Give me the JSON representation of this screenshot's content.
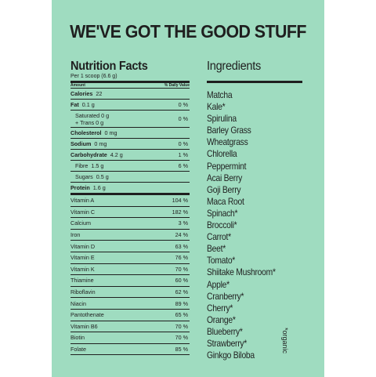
{
  "headline": "WE'VE GOT THE GOOD STUFF",
  "nutrition": {
    "title": "Nutrition Facts",
    "serving": "Per 1 scoop (6.6 g)",
    "col_amount": "Amount",
    "col_dv": "% Daily Value",
    "calories": {
      "label": "Calories",
      "value": "22"
    },
    "fat": {
      "label": "Fat",
      "value": "0.1 g",
      "dv": "0 %"
    },
    "sat": {
      "label": "Saturated",
      "value": "0 g",
      "label2": "+ Trans",
      "value2": "0 g",
      "dv": "0 %"
    },
    "cholesterol": {
      "label": "Cholesterol",
      "value": "0 mg"
    },
    "sodium": {
      "label": "Sodium",
      "value": "0 mg",
      "dv": "0 %"
    },
    "carbs": {
      "label": "Carbohydrate",
      "value": "4.2 g",
      "dv": "1 %"
    },
    "fibre": {
      "label": "Fibre",
      "value": "1.5 g",
      "dv": "6 %"
    },
    "sugars": {
      "label": "Sugars",
      "value": "0.5 g"
    },
    "protein": {
      "label": "Protein",
      "value": "1.6 g"
    },
    "vitamins": [
      {
        "name": "Vitamin A",
        "dv": "104 %"
      },
      {
        "name": "Vitamin C",
        "dv": "182 %"
      },
      {
        "name": "Calcium",
        "dv": "3 %"
      },
      {
        "name": "Iron",
        "dv": "24 %"
      },
      {
        "name": "Vitamin D",
        "dv": "63 %"
      },
      {
        "name": "Vitamin E",
        "dv": "76 %"
      },
      {
        "name": "Vitamin K",
        "dv": "70 %"
      },
      {
        "name": "Thiamine",
        "dv": "60 %"
      },
      {
        "name": "Riboflavin",
        "dv": "62 %"
      },
      {
        "name": "Niacin",
        "dv": "89 %"
      },
      {
        "name": "Pantothenate",
        "dv": "65 %"
      },
      {
        "name": "Vitamin B6",
        "dv": "70 %"
      },
      {
        "name": "Biotin",
        "dv": "70 %"
      },
      {
        "name": "Folate",
        "dv": "85 %"
      }
    ]
  },
  "ingredients": {
    "title": "Ingredients",
    "items": [
      "Matcha",
      "Kale*",
      "Spirulina",
      "Barley Grass",
      "Wheatgrass",
      "Chlorella",
      "Peppermint",
      "Acai Berry",
      "Goji Berry",
      "Maca Root",
      "Spinach*",
      "Broccoli*",
      "Carrot*",
      "Beet*",
      "Tomato*",
      "Shiitake Mushroom*",
      "Apple*",
      "Cranberry*",
      "Cherry*",
      "Orange*",
      "Blueberry*",
      "Strawberry*",
      "Ginkgo Biloba"
    ],
    "note": "*organic"
  },
  "colors": {
    "background": "#9fdcc0",
    "ink": "#1f1f1f"
  }
}
